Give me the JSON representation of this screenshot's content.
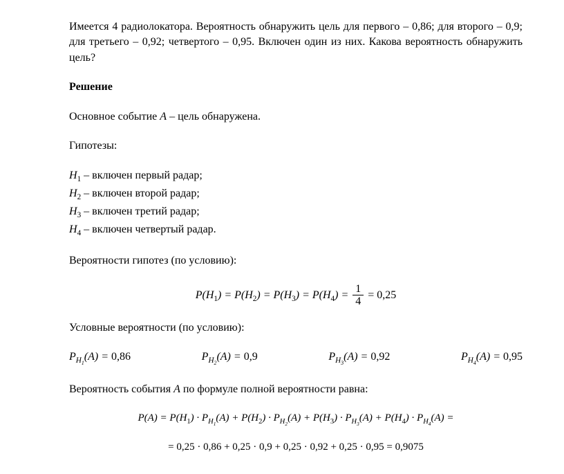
{
  "problem": {
    "text": "Имеется 4 радиолокатора. Вероятность обнаружить цель для первого – 0,86; для второго – 0,9; для третьего – 0,92; четвертого – 0,95. Включен один из них. Какова вероятность обнаружить цель?"
  },
  "solution_header": "Решение",
  "main_event": {
    "prefix": "Основное событие ",
    "symbol": "A",
    "suffix": " – цель обнаружена."
  },
  "hypotheses_label": "Гипотезы:",
  "hypotheses": [
    {
      "symbol": "H",
      "index": "1",
      "text": " – включен первый радар;"
    },
    {
      "symbol": "H",
      "index": "2",
      "text": " – включен второй радар;"
    },
    {
      "symbol": "H",
      "index": "3",
      "text": " – включен третий радар;"
    },
    {
      "symbol": "H",
      "index": "4",
      "text": " – включен четвертый радар."
    }
  ],
  "hyp_prob_label": "Вероятности гипотез (по условию):",
  "hyp_prob_formula": {
    "lhs_parts": [
      "P(H",
      "1",
      ") = P(H",
      "2",
      ") =  P(H",
      "3",
      ") = P(H",
      "4",
      ") = "
    ],
    "frac_num": "1",
    "frac_den": "4",
    "result": " = 0,25"
  },
  "cond_prob_label": "Условные вероятности (по условию):",
  "cond_probs": [
    {
      "H_sub": "1",
      "value": "0,86"
    },
    {
      "H_sub": "2",
      "value": "0,9"
    },
    {
      "H_sub": "3",
      "value": "0,92"
    },
    {
      "H_sub": "4",
      "value": "0,95"
    }
  ],
  "total_prob_label_prefix": "Вероятность события ",
  "total_prob_symbol": "A",
  "total_prob_label_suffix": " по формуле полной вероятности равна:",
  "total_formula": {
    "line1_parts": [
      "P(A) = P(H",
      "1",
      ") · P",
      "H",
      "1",
      "(A) + P(H",
      "2",
      ") · P",
      "H",
      "2",
      "(A) + P(H",
      "3",
      ") · P",
      "H",
      "3",
      "(A) + P(H",
      "4",
      ") · P",
      "H",
      "4",
      "(A) ="
    ],
    "line2": "= 0,25 · 0,86 + 0,25 · 0,9 + 0,25 · 0,92 + 0,25 · 0,95 = 0,9075"
  }
}
